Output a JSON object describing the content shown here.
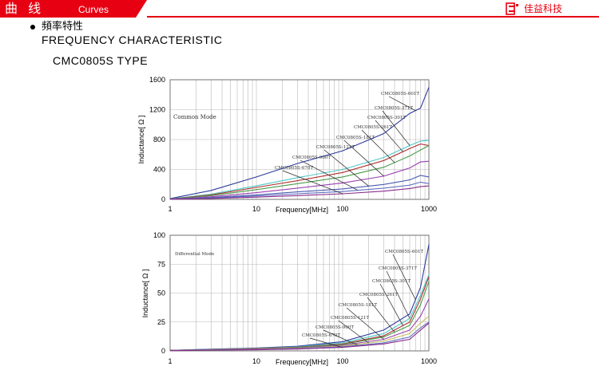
{
  "header": {
    "title": "曲 线",
    "subtitle": "Curves",
    "brand": "佳益科技",
    "logo_icon": "brand-logo-icon",
    "accent": "#e60012"
  },
  "section": {
    "title_cn": "頻率特性",
    "title_en": "FREQUENCY CHARACTERISTIC",
    "type": "CMC0805S TYPE"
  },
  "chart_data": [
    {
      "type": "line",
      "annotation": "Common Mode",
      "xlabel": "Frequency[MHz]",
      "ylabel": "Inductance[ Ω ]",
      "xscale": "log",
      "xlim": [
        1,
        1000
      ],
      "ylim": [
        0,
        1600
      ],
      "xticks": [
        "1",
        "10",
        "100",
        "1000"
      ],
      "yticks": [
        "0",
        "400",
        "800",
        "1200",
        "1600"
      ],
      "grid": true,
      "series": [
        {
          "name": "CMC0805S-601T",
          "color": "#2b3a9c",
          "x": [
            1,
            3,
            10,
            30,
            100,
            300,
            600,
            800,
            1000
          ],
          "y": [
            10,
            120,
            300,
            480,
            650,
            880,
            1150,
            1220,
            1500
          ]
        },
        {
          "name": "CMC0805S-371T",
          "color": "#4ec7c7",
          "x": [
            1,
            3,
            10,
            30,
            100,
            300,
            600,
            800,
            1000
          ],
          "y": [
            5,
            70,
            180,
            290,
            400,
            560,
            720,
            780,
            790
          ]
        },
        {
          "name": "CMC0805S-301T",
          "color": "#b03030",
          "x": [
            1,
            3,
            10,
            30,
            100,
            300,
            600,
            800,
            1000
          ],
          "y": [
            5,
            60,
            160,
            250,
            360,
            520,
            680,
            740,
            720
          ]
        },
        {
          "name": "CMC0805S-261T",
          "color": "#4a9a4a",
          "x": [
            1,
            3,
            10,
            30,
            100,
            300,
            600,
            800,
            1000
          ],
          "y": [
            4,
            50,
            130,
            210,
            300,
            430,
            580,
            660,
            720
          ]
        },
        {
          "name": "CMC0805S-181T",
          "color": "#9a40b0",
          "x": [
            1,
            3,
            10,
            30,
            100,
            300,
            600,
            800,
            1000
          ],
          "y": [
            3,
            35,
            90,
            150,
            220,
            310,
            420,
            500,
            510
          ]
        },
        {
          "name": "CMC0805S-121T",
          "color": "#4a5ab0",
          "x": [
            1,
            3,
            10,
            30,
            100,
            300,
            600,
            800,
            1000
          ],
          "y": [
            2,
            25,
            60,
            100,
            140,
            200,
            260,
            320,
            300
          ]
        },
        {
          "name": "CMC0805S-900T",
          "color": "#6070c0",
          "x": [
            1,
            3,
            10,
            30,
            100,
            300,
            600,
            800,
            1000
          ],
          "y": [
            2,
            18,
            45,
            75,
            105,
            150,
            190,
            230,
            210
          ]
        },
        {
          "name": "CMC0805S-670T",
          "color": "#8a2a8a",
          "x": [
            1,
            3,
            10,
            30,
            100,
            300,
            600,
            800,
            1000
          ],
          "y": [
            1,
            12,
            30,
            50,
            75,
            110,
            145,
            170,
            180
          ]
        }
      ]
    },
    {
      "type": "line",
      "annotation": "Differential Mode",
      "xlabel": "Frequency[MHz]",
      "ylabel": "Inductance[ Ω ]",
      "xscale": "log",
      "xlim": [
        1,
        1000
      ],
      "ylim": [
        0,
        100
      ],
      "xticks": [
        "1",
        "10",
        "100",
        "1000"
      ],
      "yticks": [
        "0",
        "25",
        "50",
        "75",
        "100"
      ],
      "grid": true,
      "series": [
        {
          "name": "CMC0805S-601T",
          "color": "#2b3a9c",
          "x": [
            1,
            3,
            10,
            30,
            100,
            300,
            600,
            800,
            1000
          ],
          "y": [
            0.5,
            1.5,
            2.5,
            4,
            8,
            18,
            32,
            55,
            92
          ]
        },
        {
          "name": "CMC0805S-371T",
          "color": "#4ec7c7",
          "x": [
            1,
            3,
            10,
            30,
            100,
            300,
            600,
            800,
            1000
          ],
          "y": [
            0.5,
            1.3,
            2.2,
            3.5,
            7,
            15,
            28,
            48,
            66
          ]
        },
        {
          "name": "CMC0805S-301T",
          "color": "#b03030",
          "x": [
            1,
            3,
            10,
            30,
            100,
            300,
            600,
            800,
            1000
          ],
          "y": [
            0.5,
            1.2,
            2.0,
            3.2,
            6,
            13,
            25,
            45,
            64
          ]
        },
        {
          "name": "CMC0805S-261T",
          "color": "#4a9a4a",
          "x": [
            1,
            3,
            10,
            30,
            100,
            300,
            600,
            800,
            1000
          ],
          "y": [
            0.4,
            1.1,
            1.8,
            2.9,
            5.5,
            12,
            22,
            40,
            60
          ]
        },
        {
          "name": "CMC0805S-181T",
          "color": "#9a40b0",
          "x": [
            1,
            3,
            10,
            30,
            100,
            300,
            600,
            800,
            1000
          ],
          "y": [
            0.4,
            1.0,
            1.6,
            2.5,
            4.8,
            10,
            18,
            30,
            45
          ]
        },
        {
          "name": "CMC0805S-121T",
          "color": "#c8c060",
          "x": [
            1,
            3,
            10,
            30,
            100,
            300,
            600,
            800,
            1000
          ],
          "y": [
            0.3,
            0.9,
            1.4,
            2.2,
            4.2,
            8.5,
            15,
            24,
            30
          ]
        },
        {
          "name": "CMC0805S-900T",
          "color": "#6070c0",
          "x": [
            1,
            3,
            10,
            30,
            100,
            300,
            600,
            800,
            1000
          ],
          "y": [
            0.3,
            0.8,
            1.2,
            1.9,
            3.6,
            7,
            12,
            20,
            25
          ]
        },
        {
          "name": "CMC0805S-670T",
          "color": "#8a2a8a",
          "x": [
            1,
            3,
            10,
            30,
            100,
            300,
            600,
            800,
            1000
          ],
          "y": [
            0.2,
            0.7,
            1.0,
            1.6,
            3.0,
            6,
            10,
            18,
            24
          ]
        }
      ]
    }
  ]
}
